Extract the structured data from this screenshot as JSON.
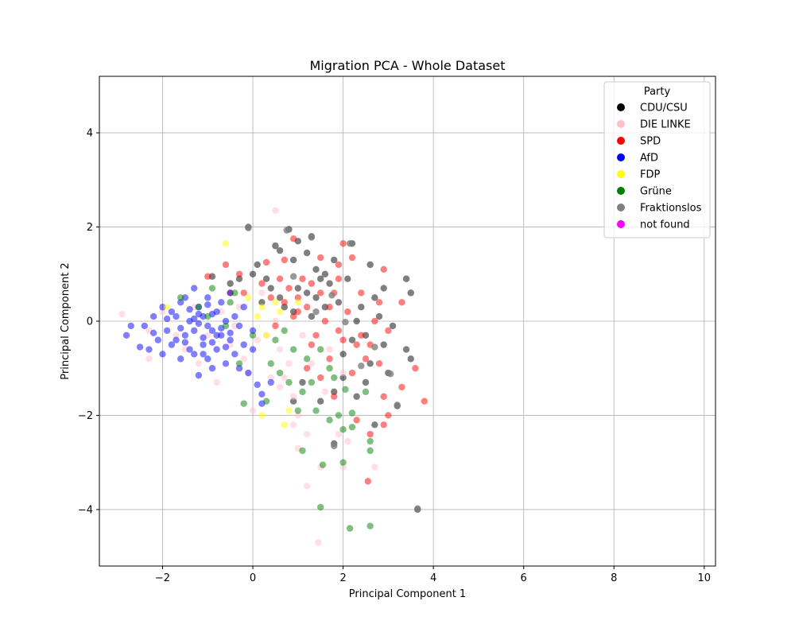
{
  "chart_data": {
    "type": "scatter",
    "title": "Migration PCA - Whole Dataset",
    "xlabel": "Principal Component 1",
    "ylabel": "Principal Component 2",
    "xlim": [
      -3.4,
      10.25
    ],
    "ylim": [
      -5.2,
      5.2
    ],
    "xticks": [
      "−2",
      "0",
      "2",
      "4",
      "6",
      "8",
      "10"
    ],
    "xtick_values": [
      -2,
      0,
      2,
      4,
      6,
      8,
      10
    ],
    "yticks": [
      "−4",
      "−2",
      "0",
      "2",
      "4"
    ],
    "ytick_values": [
      -4,
      -2,
      0,
      2,
      4
    ],
    "grid": true,
    "legend_title": "Party",
    "legend_placement": "top-right",
    "series": [
      {
        "name": "CDU/CSU",
        "color": "#000000",
        "alpha": 0.5,
        "points": [
          [
            -0.1,
            2.0
          ],
          [
            0.8,
            1.95
          ],
          [
            1.3,
            1.8
          ],
          [
            1.0,
            1.7
          ],
          [
            0.5,
            1.6
          ],
          [
            2.2,
            1.65
          ],
          [
            0.6,
            1.5
          ],
          [
            1.2,
            1.45
          ],
          [
            0.9,
            1.3
          ],
          [
            1.8,
            1.3
          ],
          [
            0.1,
            1.2
          ],
          [
            1.4,
            1.1
          ],
          [
            1.6,
            1.0
          ],
          [
            2.1,
            0.9
          ],
          [
            2.6,
            1.2
          ],
          [
            3.4,
            0.9
          ],
          [
            3.5,
            0.6
          ],
          [
            2.9,
            0.7
          ],
          [
            1.7,
            0.8
          ],
          [
            1.2,
            0.6
          ],
          [
            0.6,
            0.5
          ],
          [
            0.3,
            0.9
          ],
          [
            0.0,
            1.0
          ],
          [
            -0.3,
            0.9
          ],
          [
            -0.5,
            0.8
          ],
          [
            2.4,
            0.3
          ],
          [
            2.8,
            0.1
          ],
          [
            3.1,
            -0.1
          ],
          [
            2.5,
            -0.3
          ],
          [
            2.9,
            -0.5
          ],
          [
            3.4,
            -0.6
          ],
          [
            3.0,
            -1.1
          ],
          [
            3.2,
            -1.8
          ],
          [
            2.3,
            -1.6
          ],
          [
            2.5,
            -1.3
          ],
          [
            2.0,
            -1.2
          ],
          [
            1.8,
            -1.5
          ],
          [
            1.5,
            -1.7
          ],
          [
            0.9,
            -1.7
          ],
          [
            1.8,
            -2.6
          ],
          [
            2.7,
            -2.2
          ],
          [
            3.65,
            -4.0
          ],
          [
            1.6,
            0.3
          ],
          [
            1.9,
            0.4
          ],
          [
            1.4,
            0.5
          ],
          [
            1.0,
            0.7
          ],
          [
            0.7,
            0.3
          ],
          [
            2.2,
            -0.4
          ],
          [
            2.7,
            0.5
          ],
          [
            1.1,
            -1.3
          ],
          [
            3.5,
            -0.8
          ],
          [
            1.5,
            0.9
          ],
          [
            0.9,
            0.2
          ],
          [
            2.0,
            -0.7
          ],
          [
            0.4,
            0.7
          ],
          [
            -0.9,
            0.95
          ],
          [
            1.3,
            0.1
          ],
          [
            2.3,
            0.0
          ],
          [
            0.2,
            0.4
          ],
          [
            2.6,
            -0.9
          ]
        ]
      },
      {
        "name": "DIE LINKE",
        "color": "#ffc0cb",
        "alpha": 0.5,
        "points": [
          [
            -2.9,
            0.15
          ],
          [
            -2.3,
            -0.8
          ],
          [
            -2.0,
            0.2
          ],
          [
            -1.5,
            -0.6
          ],
          [
            -1.2,
            -0.9
          ],
          [
            -0.8,
            -1.3
          ],
          [
            -0.5,
            -0.5
          ],
          [
            -0.2,
            -0.8
          ],
          [
            0.0,
            -1.9
          ],
          [
            0.4,
            -1.2
          ],
          [
            0.6,
            -1.4
          ],
          [
            0.9,
            -1.6
          ],
          [
            1.0,
            -2.0
          ],
          [
            0.9,
            -2.2
          ],
          [
            1.0,
            -2.7
          ],
          [
            1.2,
            -2.4
          ],
          [
            1.2,
            -3.5
          ],
          [
            1.5,
            -3.1
          ],
          [
            1.45,
            -4.7
          ],
          [
            1.9,
            -2.4
          ],
          [
            2.0,
            -3.1
          ],
          [
            2.1,
            -2.55
          ],
          [
            2.7,
            -3.1
          ],
          [
            2.0,
            -1.1
          ],
          [
            1.6,
            -1.5
          ],
          [
            0.5,
            2.35
          ],
          [
            0.3,
            -0.3
          ],
          [
            -0.3,
            0.3
          ],
          [
            0.6,
            -0.6
          ],
          [
            1.3,
            -0.9
          ],
          [
            -1.0,
            -0.3
          ],
          [
            -0.7,
            0.2
          ],
          [
            0.1,
            -0.4
          ],
          [
            0.8,
            -0.9
          ],
          [
            -1.7,
            -0.3
          ],
          [
            -0.4,
            -0.1
          ],
          [
            1.1,
            -0.3
          ],
          [
            0.2,
            0.6
          ],
          [
            -2.3,
            -0.2
          ],
          [
            0.5,
            0.0
          ],
          [
            -1.3,
            0.3
          ],
          [
            1.7,
            -0.6
          ],
          [
            -0.1,
            -1.1
          ],
          [
            0.7,
            -1.2
          ]
        ]
      },
      {
        "name": "SPD",
        "color": "#ff0000",
        "alpha": 0.5,
        "points": [
          [
            0.9,
            1.75
          ],
          [
            2.0,
            1.65
          ],
          [
            1.5,
            1.35
          ],
          [
            0.7,
            1.3
          ],
          [
            0.3,
            1.25
          ],
          [
            -0.3,
            1.0
          ],
          [
            -0.6,
            1.2
          ],
          [
            2.2,
            1.35
          ],
          [
            1.9,
            1.2
          ],
          [
            2.9,
            1.1
          ],
          [
            3.3,
            0.4
          ],
          [
            2.4,
            0.6
          ],
          [
            2.8,
            0.4
          ],
          [
            3.0,
            -0.2
          ],
          [
            2.6,
            -0.5
          ],
          [
            2.3,
            -0.5
          ],
          [
            2.5,
            -0.8
          ],
          [
            2.8,
            -0.9
          ],
          [
            2.2,
            -1.1
          ],
          [
            2.9,
            -1.6
          ],
          [
            3.3,
            -1.4
          ],
          [
            3.6,
            -1.0
          ],
          [
            3.8,
            -1.7
          ],
          [
            3.0,
            -2.0
          ],
          [
            2.9,
            -2.2
          ],
          [
            2.6,
            -2.4
          ],
          [
            2.3,
            -2.1
          ],
          [
            2.55,
            -3.4
          ],
          [
            1.8,
            -1.6
          ],
          [
            1.5,
            -1.2
          ],
          [
            1.2,
            -1.0
          ],
          [
            1.0,
            0.2
          ],
          [
            1.3,
            0.8
          ],
          [
            1.7,
            0.3
          ],
          [
            0.8,
            0.7
          ],
          [
            1.0,
            0.5
          ],
          [
            1.9,
            -0.2
          ],
          [
            1.6,
            0.0
          ],
          [
            2.1,
            0.2
          ],
          [
            1.4,
            -0.3
          ],
          [
            1.1,
            0.9
          ],
          [
            0.6,
            0.9
          ],
          [
            0.4,
            0.5
          ],
          [
            0.2,
            0.8
          ],
          [
            1.8,
            0.6
          ],
          [
            2.0,
            -0.4
          ],
          [
            1.2,
            0.3
          ],
          [
            0.9,
            0.1
          ],
          [
            0.5,
            -0.1
          ],
          [
            1.5,
            0.6
          ],
          [
            -0.2,
            0.6
          ],
          [
            2.4,
            -0.3
          ],
          [
            1.7,
            -0.8
          ],
          [
            1.3,
            -0.5
          ],
          [
            2.7,
            0.0
          ],
          [
            0.7,
            0.4
          ],
          [
            1.9,
            0.9
          ],
          [
            -1.0,
            0.95
          ],
          [
            -0.5,
            0.6
          ]
        ]
      },
      {
        "name": "AfD",
        "color": "#0000ff",
        "alpha": 0.5,
        "points": [
          [
            -2.8,
            -0.3
          ],
          [
            -2.7,
            -0.1
          ],
          [
            -2.5,
            -0.55
          ],
          [
            -2.4,
            -0.1
          ],
          [
            -2.3,
            -0.6
          ],
          [
            -2.2,
            0.1
          ],
          [
            -2.1,
            -0.4
          ],
          [
            -2.0,
            -0.7
          ],
          [
            -2.0,
            0.3
          ],
          [
            -1.9,
            -0.2
          ],
          [
            -1.8,
            -0.5
          ],
          [
            -1.7,
            0.1
          ],
          [
            -1.6,
            -0.8
          ],
          [
            -1.6,
            0.4
          ],
          [
            -1.5,
            -0.3
          ],
          [
            -1.4,
            0.0
          ],
          [
            -1.4,
            -0.6
          ],
          [
            -1.3,
            0.7
          ],
          [
            -1.3,
            -0.2
          ],
          [
            -1.2,
            -1.15
          ],
          [
            -1.2,
            0.3
          ],
          [
            -1.1,
            -0.5
          ],
          [
            -1.1,
            0.1
          ],
          [
            -1.0,
            -0.8
          ],
          [
            -1.0,
            0.5
          ],
          [
            -0.9,
            -0.2
          ],
          [
            -0.9,
            -1.0
          ],
          [
            -0.8,
            0.2
          ],
          [
            -0.8,
            -0.6
          ],
          [
            -0.7,
            -0.3
          ],
          [
            -0.7,
            0.4
          ],
          [
            -0.6,
            -0.9
          ],
          [
            -0.6,
            0.0
          ],
          [
            -0.5,
            -0.4
          ],
          [
            -0.5,
            0.6
          ],
          [
            -0.4,
            -0.7
          ],
          [
            -0.3,
            -0.1
          ],
          [
            -0.3,
            -1.0
          ],
          [
            -0.2,
            0.3
          ],
          [
            -0.2,
            -0.5
          ],
          [
            -0.1,
            -1.1
          ],
          [
            0.0,
            -0.6
          ],
          [
            0.0,
            -0.2
          ],
          [
            0.1,
            -1.35
          ],
          [
            0.2,
            -1.55
          ],
          [
            0.2,
            -1.75
          ],
          [
            0.4,
            -1.3
          ],
          [
            -1.5,
            0.5
          ],
          [
            -1.2,
            -0.05
          ],
          [
            -0.9,
            0.15
          ],
          [
            -1.7,
            -0.4
          ],
          [
            -1.3,
            -0.7
          ],
          [
            -0.8,
            -0.3
          ],
          [
            -1.0,
            -0.1
          ],
          [
            -1.4,
            0.25
          ],
          [
            -1.1,
            -0.35
          ],
          [
            -0.6,
            -0.55
          ],
          [
            -1.6,
            -0.15
          ],
          [
            -1.9,
            0.05
          ],
          [
            -2.2,
            -0.25
          ],
          [
            -1.2,
            0.15
          ],
          [
            -0.7,
            -0.15
          ],
          [
            -1.5,
            -0.45
          ],
          [
            -1.0,
            0.35
          ],
          [
            -0.4,
            0.1
          ],
          [
            -1.8,
            0.2
          ],
          [
            -1.3,
            0.05
          ],
          [
            -0.9,
            -0.45
          ],
          [
            -1.1,
            -0.7
          ],
          [
            -0.5,
            -0.25
          ]
        ]
      },
      {
        "name": "FDP",
        "color": "#ffff00",
        "alpha": 0.5,
        "points": [
          [
            -0.6,
            1.65
          ],
          [
            -1.9,
            0.3
          ],
          [
            0.2,
            0.3
          ],
          [
            0.5,
            0.4
          ],
          [
            0.1,
            0.1
          ],
          [
            0.6,
            0.2
          ],
          [
            0.3,
            -0.3
          ],
          [
            0.8,
            -1.9
          ],
          [
            0.2,
            -2.0
          ],
          [
            0.7,
            -2.2
          ],
          [
            1.0,
            0.4
          ],
          [
            -0.1,
            0.5
          ]
        ]
      },
      {
        "name": "Grüne",
        "color": "#008000",
        "alpha": 0.5,
        "points": [
          [
            -1.6,
            0.5
          ],
          [
            -1.2,
            0.3
          ],
          [
            -0.9,
            0.7
          ],
          [
            -0.5,
            0.4
          ],
          [
            -0.3,
            -0.9
          ],
          [
            -0.2,
            -1.75
          ],
          [
            0.3,
            -1.7
          ],
          [
            0.6,
            -1.1
          ],
          [
            0.8,
            -1.3
          ],
          [
            1.0,
            -1.9
          ],
          [
            1.1,
            -1.5
          ],
          [
            1.4,
            -1.9
          ],
          [
            1.7,
            -2.1
          ],
          [
            1.9,
            -2.0
          ],
          [
            2.2,
            -1.95
          ],
          [
            2.2,
            -2.25
          ],
          [
            2.0,
            -2.3
          ],
          [
            2.6,
            -2.55
          ],
          [
            2.6,
            -2.75
          ],
          [
            2.0,
            -3.0
          ],
          [
            1.55,
            -3.05
          ],
          [
            1.1,
            -2.75
          ],
          [
            1.5,
            -3.95
          ],
          [
            2.15,
            -4.4
          ],
          [
            2.6,
            -4.35
          ],
          [
            2.05,
            -1.45
          ],
          [
            1.8,
            -1.2
          ],
          [
            1.5,
            -0.6
          ],
          [
            0.9,
            -0.6
          ],
          [
            0.5,
            -0.4
          ],
          [
            0.0,
            -0.3
          ],
          [
            -0.6,
            -0.1
          ],
          [
            1.2,
            -0.8
          ],
          [
            0.4,
            -0.9
          ],
          [
            2.5,
            -1.5
          ],
          [
            1.7,
            -1.0
          ],
          [
            -1.0,
            0.1
          ],
          [
            0.7,
            -0.2
          ],
          [
            -0.4,
            0.6
          ],
          [
            1.3,
            -1.3
          ]
        ]
      },
      {
        "name": "Fraktionslos",
        "color": "#808080",
        "alpha": 0.8,
        "points": [
          [
            -0.1,
            1.98
          ],
          [
            0.75,
            1.93
          ],
          [
            1.3,
            1.78
          ],
          [
            2.15,
            1.65
          ],
          [
            3.4,
            0.9
          ],
          [
            3.5,
            0.6
          ],
          [
            2.6,
            1.2
          ],
          [
            0.5,
            1.6
          ],
          [
            3.65,
            -3.98
          ],
          [
            1.8,
            -2.65
          ],
          [
            3.2,
            -1.78
          ],
          [
            0.9,
            0.95
          ],
          [
            1.4,
            0.2
          ],
          [
            2.7,
            -0.55
          ],
          [
            3.05,
            -1.12
          ],
          [
            2.05,
            -0.02
          ],
          [
            1.75,
            0.55
          ],
          [
            2.4,
            -0.95
          ]
        ]
      },
      {
        "name": "not found",
        "color": "#ff00ff",
        "alpha": 0.5,
        "points": []
      }
    ]
  }
}
